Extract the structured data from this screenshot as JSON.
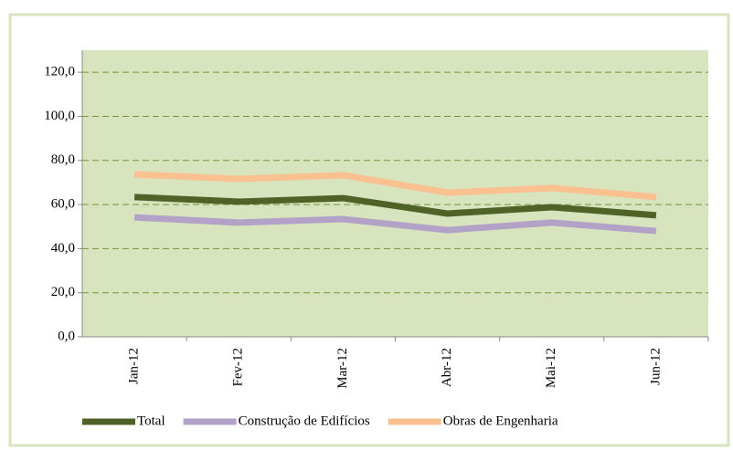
{
  "chart_data": {
    "type": "line",
    "categories": [
      "Jan-12",
      "Fev-12",
      "Mar-12",
      "Abr-12",
      "Mai-12",
      "Jun-12"
    ],
    "series": [
      {
        "name": "Total",
        "color": "#4f6228",
        "values": [
          63.4,
          61.3,
          62.9,
          55.9,
          58.8,
          55.1
        ]
      },
      {
        "name": "Construção de Edifícios",
        "color": "#b3a2c7",
        "values": [
          54.2,
          51.8,
          53.4,
          48.4,
          51.8,
          48.0
        ]
      },
      {
        "name": "Obras de Engenharia",
        "color": "#fac090",
        "values": [
          73.7,
          71.6,
          73.3,
          65.4,
          67.5,
          63.4
        ]
      }
    ],
    "ylim": [
      0,
      130
    ],
    "yticks": [
      {
        "value": 0,
        "label": "0,0"
      },
      {
        "value": 20,
        "label": "20,0"
      },
      {
        "value": 40,
        "label": "40,0"
      },
      {
        "value": 60,
        "label": "60,0"
      },
      {
        "value": 80,
        "label": "80,0"
      },
      {
        "value": 100,
        "label": "100,0"
      },
      {
        "value": 120,
        "label": "120,0"
      }
    ],
    "grid": true,
    "legend": "bottom"
  }
}
